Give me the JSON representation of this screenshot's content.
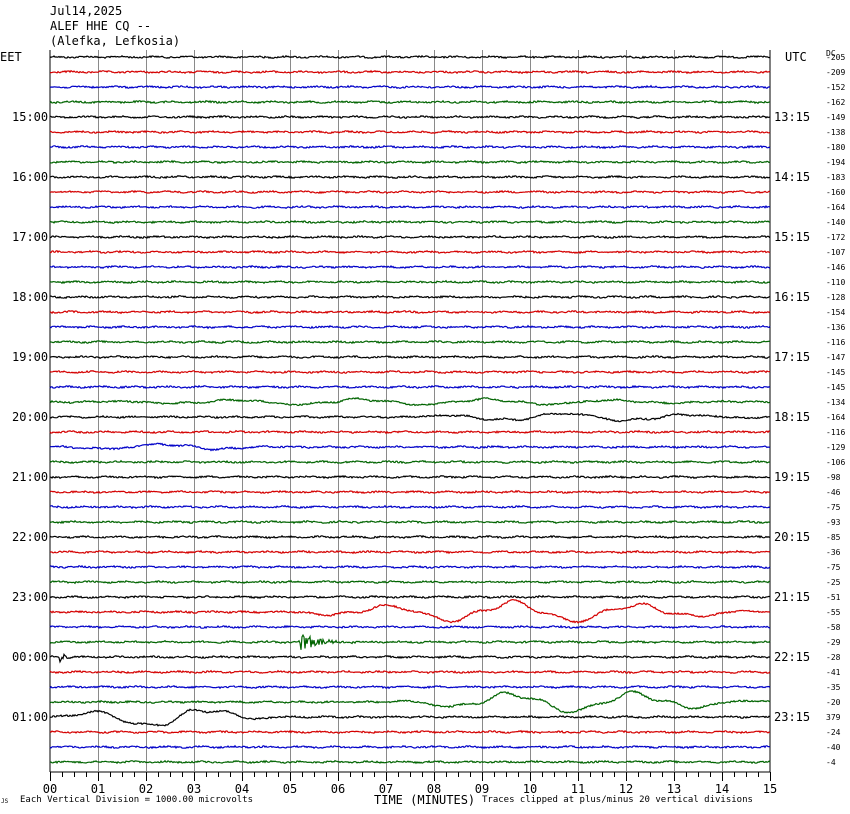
{
  "header": {
    "date": "Jul14,2025",
    "station": "ALEF HHE CQ --",
    "location": "(Alefka, Lefkosia)"
  },
  "zones": {
    "left": "EET",
    "right": "UTC",
    "dc": "DC"
  },
  "footer": {
    "scale_note": "Each Vertical Division = 1000.00 microvolts",
    "clip_note": "Traces clipped at plus/minus 20 vertical divisions",
    "logo_text": "JS"
  },
  "chart_data": {
    "type": "line",
    "xlabel": "TIME (MINUTES)",
    "xlim": [
      0,
      15
    ],
    "x_ticks": [
      "00",
      "01",
      "02",
      "03",
      "04",
      "05",
      "06",
      "07",
      "08",
      "09",
      "10",
      "11",
      "12",
      "13",
      "14",
      "15"
    ],
    "trace_colors": [
      "#000000",
      "#d40000",
      "#0000c8",
      "#006400"
    ],
    "left_time_labels": [
      {
        "row": 4,
        "label": "15:00"
      },
      {
        "row": 8,
        "label": "16:00"
      },
      {
        "row": 12,
        "label": "17:00"
      },
      {
        "row": 16,
        "label": "18:00"
      },
      {
        "row": 20,
        "label": "19:00"
      },
      {
        "row": 24,
        "label": "20:00"
      },
      {
        "row": 28,
        "label": "21:00"
      },
      {
        "row": 32,
        "label": "22:00"
      },
      {
        "row": 36,
        "label": "23:00"
      },
      {
        "row": 40,
        "label": "00:00"
      },
      {
        "row": 44,
        "label": "01:00"
      }
    ],
    "right_time_labels": [
      {
        "row": 4,
        "label": "13:15"
      },
      {
        "row": 8,
        "label": "14:15"
      },
      {
        "row": 12,
        "label": "15:15"
      },
      {
        "row": 16,
        "label": "16:15"
      },
      {
        "row": 20,
        "label": "17:15"
      },
      {
        "row": 24,
        "label": "18:15"
      },
      {
        "row": 28,
        "label": "19:15"
      },
      {
        "row": 32,
        "label": "20:15"
      },
      {
        "row": 36,
        "label": "21:15"
      },
      {
        "row": 40,
        "label": "22:15"
      },
      {
        "row": 44,
        "label": "23:15"
      }
    ],
    "dc_offsets": [
      "-205",
      "-209",
      "-152",
      "-162",
      "-149",
      "-138",
      "-180",
      "-194",
      "-183",
      "-160",
      "-164",
      "-140",
      "-172",
      "-107",
      "-146",
      "-110",
      "-128",
      "-154",
      "-136",
      "-116",
      "-147",
      "-145",
      "-145",
      "-134",
      "-164",
      "-116",
      "-129",
      "-106",
      "-98",
      "-46",
      "-75",
      "-93",
      "-85",
      "-36",
      "-75",
      "-25",
      "-51",
      "-55",
      "-58",
      "-29",
      "-28",
      "-41",
      "-35",
      "-20",
      "379",
      "-24",
      "-40",
      "-4"
    ],
    "events": [
      {
        "row": 23,
        "type": "long-period",
        "x_start": 0.0,
        "x_end": 15.0,
        "amplitude": 0.3
      },
      {
        "row": 24,
        "type": "long-period",
        "x_start": 7.0,
        "x_end": 15.0,
        "amplitude": 0.4
      },
      {
        "row": 26,
        "type": "long-period",
        "x_start": 0.0,
        "x_end": 5.0,
        "amplitude": 0.3
      },
      {
        "row": 37,
        "type": "long-period",
        "x_start": 4.8,
        "x_end": 15.0,
        "amplitude": 1.0
      },
      {
        "row": 39,
        "type": "burst",
        "x_start": 5.2,
        "x_end": 7.0,
        "amplitude": 1.0
      },
      {
        "row": 40,
        "type": "burst",
        "x_start": 0.2,
        "x_end": 0.8,
        "amplitude": 0.6
      },
      {
        "row": 43,
        "type": "long-period",
        "x_start": 7.0,
        "x_end": 15.0,
        "amplitude": 1.0
      },
      {
        "row": 44,
        "type": "long-period",
        "x_start": 0.0,
        "x_end": 4.7,
        "amplitude": 1.0
      }
    ]
  }
}
